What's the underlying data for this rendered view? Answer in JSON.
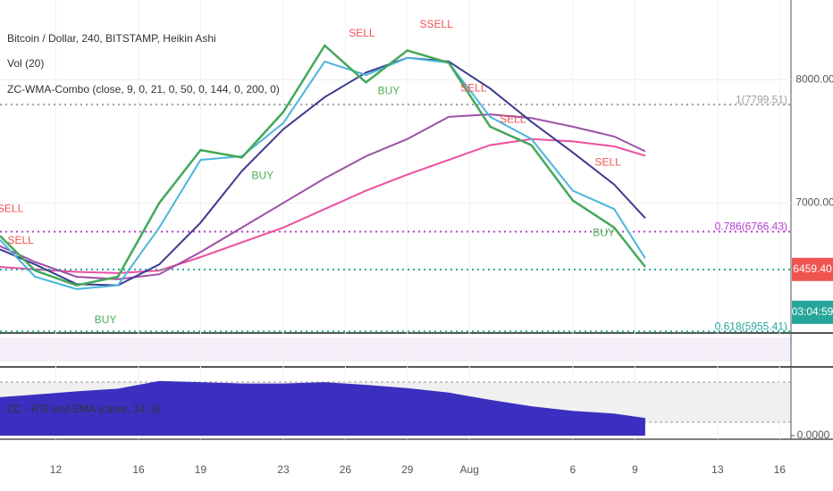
{
  "chart_data": {
    "type": "line",
    "title": "Bitcoin / Dollar, 240, BITSTAMP, Heikin Ashi",
    "indicators": [
      "Vol (20)",
      "ZC-WMA-Combo (close, 9, 0, 21, 0, 50, 0, 144, 0, 200, 0)"
    ],
    "x": [
      9.3,
      11,
      13,
      15,
      17,
      19,
      21,
      23,
      25,
      27,
      29,
      31,
      33,
      35,
      37,
      39,
      40.5
    ],
    "series": [
      {
        "color": "#ec4f9f",
        "values": [
          6480,
          6460,
          6440,
          6430,
          6450,
          6560,
          6680,
          6800,
          6950,
          7100,
          7230,
          7350,
          7470,
          7520,
          7500,
          7460,
          7384
        ]
      },
      {
        "color": "#9c4fa6",
        "values": [
          6650,
          6520,
          6400,
          6380,
          6420,
          6600,
          6800,
          7000,
          7200,
          7380,
          7520,
          7700,
          7720,
          7690,
          7620,
          7540,
          7420
        ]
      },
      {
        "color": "#3b3b8f",
        "values": [
          6623,
          6500,
          6340,
          6330,
          6500,
          6840,
          7260,
          7600,
          7860,
          8060,
          8180,
          8150,
          7930,
          7660,
          7410,
          7150,
          6877
        ]
      },
      {
        "color": "#4cb6dc",
        "values": [
          6700,
          6400,
          6300,
          6330,
          6800,
          7350,
          7380,
          7650,
          8150,
          8040,
          8180,
          8140,
          7700,
          7520,
          7100,
          6950,
          6550
        ]
      },
      {
        "color": "#43a85a",
        "values": [
          6732,
          6450,
          6330,
          6400,
          7000,
          7430,
          7370,
          7740,
          8280,
          7980,
          8240,
          8140,
          7620,
          7470,
          7020,
          6800,
          6480
        ]
      }
    ],
    "xlim": [
      9.3,
      47.55
    ],
    "xticks": [
      12,
      16,
      19,
      23,
      26,
      29,
      {
        "value": 32,
        "label": "Aug"
      },
      {
        "value": 37,
        "label": "6"
      },
      {
        "value": 40,
        "label": "9"
      },
      {
        "value": 44,
        "label": "13"
      },
      {
        "value": 47,
        "label": "16"
      }
    ],
    "ylim": [
      5950,
      8650
    ],
    "yticks": [
      {
        "value": 7000,
        "label": "7000.00"
      },
      {
        "value": 8000,
        "label": "8000.00"
      }
    ],
    "grid": true,
    "levels": [
      {
        "value": 7799.51,
        "label": "1(7799.51)",
        "color": "#9e9e9e"
      },
      {
        "value": 6766.43,
        "label": "0.786(6766.43)",
        "color": "#b43dd0"
      },
      {
        "value": 5955.41,
        "label": "0.618(5955.41)",
        "color": "#26a69a"
      }
    ],
    "last_price": {
      "value": 6459.4,
      "label": "6459.40",
      "color": "#ef5350"
    },
    "countdown": {
      "label": "03:04:59",
      "color": "#26a69a"
    },
    "annotations": [
      {
        "text": "SELL",
        "x": 9.8,
        "y": 6950,
        "color": "#ef5350"
      },
      {
        "text": "SELL",
        "x": 10.3,
        "y": 6690,
        "color": "#ef5350"
      },
      {
        "text": "BUY",
        "x": 14.4,
        "y": 6045,
        "color": "#4caf50"
      },
      {
        "text": "BUY",
        "x": 22.0,
        "y": 7217,
        "color": "#4caf50"
      },
      {
        "text": "SELL",
        "x": 26.8,
        "y": 8377,
        "color": "#ef5350"
      },
      {
        "text": "BUY",
        "x": 28.1,
        "y": 7906,
        "color": "#4caf50"
      },
      {
        "text": "SSELL",
        "x": 30.4,
        "y": 8449,
        "color": "#ef5350"
      },
      {
        "text": "SELL",
        "x": 32.2,
        "y": 7928,
        "color": "#ef5350"
      },
      {
        "text": "SELL",
        "x": 34.1,
        "y": 7674,
        "color": "#ef5350"
      },
      {
        "text": "SELL",
        "x": 38.7,
        "y": 7326,
        "color": "#ef5350"
      },
      {
        "text": "BUY",
        "x": 38.5,
        "y": 6754,
        "color": "#4caf50"
      }
    ],
    "lower_pane": {
      "title": "ZC - RSI and EMA (close, 14, 9)",
      "ylim": [
        0,
        100
      ],
      "yticks": [
        {
          "value": 0,
          "label": "0.0000"
        }
      ],
      "color": "#3a2fbf",
      "values": [
        59,
        63,
        68,
        72,
        84,
        82,
        80,
        80,
        82,
        78,
        73,
        66,
        55,
        45,
        38,
        34,
        27
      ]
    }
  }
}
